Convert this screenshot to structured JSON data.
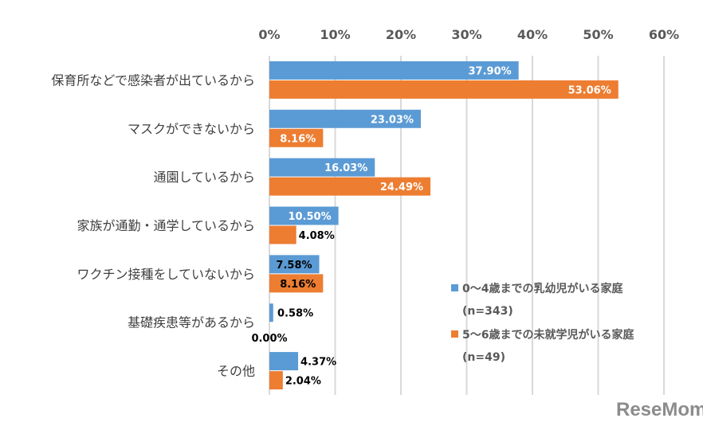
{
  "chart_data": {
    "type": "bar",
    "orientation": "horizontal",
    "categories": [
      "保育所などで感染者が出ているから",
      "マスクができないから",
      "通園しているから",
      "家族が通勤・通学しているから",
      "ワクチン接種をしていないから",
      "基礎疾患等があるから",
      "その他"
    ],
    "series": [
      {
        "name": "0〜4歳までの乳幼児がいる家庭",
        "name_line2": "(n=343)",
        "color": "#5B9BD5",
        "values": [
          37.9,
          23.03,
          16.03,
          10.5,
          7.58,
          0.58,
          4.37
        ],
        "labels": [
          "37.90%",
          "23.03%",
          "16.03%",
          "10.50%",
          "7.58%",
          "0.58%",
          "4.37%"
        ],
        "label_colors": [
          "#ffffff",
          "#ffffff",
          "#ffffff",
          "#ffffff",
          "#000000",
          "#000000",
          "#000000"
        ]
      },
      {
        "name": "5〜6歳までの未就学児がいる家庭",
        "name_line2": "(n=49)",
        "color": "#ED7D31",
        "values": [
          53.06,
          8.16,
          24.49,
          4.08,
          8.16,
          0.0,
          2.04
        ],
        "labels": [
          "53.06%",
          "8.16%",
          "24.49%",
          "4.08%",
          "8.16%",
          "0.00%",
          "2.04%"
        ],
        "label_colors": [
          "#ffffff",
          "#ffffff",
          "#ffffff",
          "#000000",
          "#000000",
          "#000000",
          "#000000"
        ]
      }
    ],
    "xlim": [
      0,
      60
    ],
    "x_ticks": [
      "0%",
      "10%",
      "20%",
      "30%",
      "40%",
      "50%",
      "60%"
    ],
    "x_axis_position": "top",
    "grid": true,
    "legend_placement": "bottom-right"
  },
  "logo": "ReseMom"
}
